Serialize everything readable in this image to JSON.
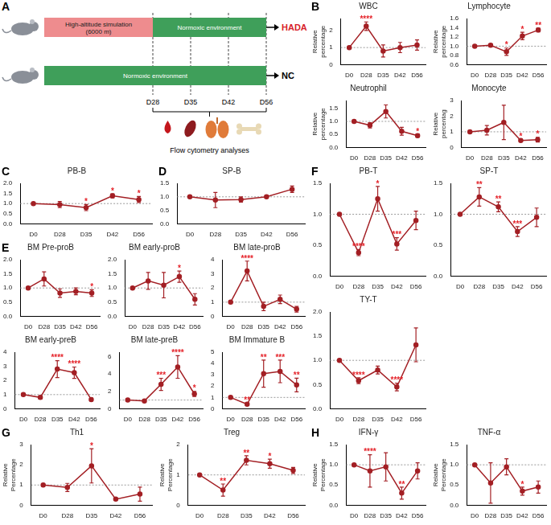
{
  "diagram": {
    "panel": "A",
    "rows": [
      {
        "label": "HADA",
        "color": "#d81e2a",
        "segments": [
          {
            "text": "High-altitude simulation (6000 m)",
            "color": "#ee8c8e"
          },
          {
            "text": "Normoxic environment",
            "color": "#3f9f5a"
          }
        ]
      },
      {
        "label": "NC",
        "color": "#000000",
        "segments": [
          {
            "text": "Normoxic environment",
            "color": "#3f9f5a"
          }
        ]
      }
    ],
    "timepoints": [
      "D28",
      "D35",
      "D42",
      "D56"
    ],
    "caption": "Flow cytometry analyses"
  },
  "chart_data": [
    {
      "type": "line",
      "panel": "B",
      "title": "WBC",
      "y_label": "Relative percentage",
      "categories": [
        "D0",
        "D28",
        "D35",
        "D42",
        "D56"
      ],
      "values": [
        1.0,
        2.25,
        0.8,
        1.0,
        1.15
      ],
      "errors": [
        0,
        0.25,
        0.35,
        0.3,
        0.3
      ],
      "annotations": [
        null,
        "****",
        null,
        null,
        null
      ],
      "reference_line": 1,
      "ylim": [
        0,
        2.7
      ],
      "yticks": [
        0,
        1,
        2
      ],
      "grid": false,
      "color": "#a31f24",
      "marker": "circle"
    },
    {
      "type": "line",
      "title": "Lymphocyte",
      "y_label": "Relative percentage",
      "categories": [
        "D0",
        "D28",
        "D35",
        "D42",
        "D56"
      ],
      "values": [
        1.0,
        1.02,
        0.88,
        1.22,
        1.35
      ],
      "errors": [
        0,
        0.03,
        0.08,
        0.08,
        0.04
      ],
      "annotations": [
        null,
        null,
        "*",
        "*",
        "**"
      ],
      "reference_line": 1,
      "ylim": [
        0.6,
        1.6
      ],
      "yticks": [
        0.6,
        0.8,
        {
          "value": 1,
          "label": "1.0"
        },
        1.2,
        1.4,
        1.6
      ],
      "grid": false,
      "color": "#a31f24",
      "marker": "circle"
    },
    {
      "type": "line",
      "title": "Neutrophil",
      "y_label": "Relative percentage",
      "categories": [
        "D0",
        "D28",
        "D35",
        "D42",
        "D56"
      ],
      "values": [
        1.0,
        0.85,
        1.38,
        0.62,
        0.45
      ],
      "errors": [
        0,
        0.1,
        0.25,
        0.15,
        0.06
      ],
      "annotations": [
        null,
        null,
        null,
        null,
        "*"
      ],
      "reference_line": 1,
      "ylim": [
        0,
        1.8
      ],
      "yticks": [
        {
          "value": 0,
          "label": "0.0"
        },
        0.5,
        {
          "value": 1,
          "label": "1.0"
        },
        1.5
      ],
      "grid": false,
      "color": "#a31f24",
      "marker": "circle"
    },
    {
      "type": "line",
      "title": "Monocyte",
      "y_label": "Relative percentag",
      "categories": [
        "D0",
        "D28",
        "D35",
        "D42",
        "D56"
      ],
      "values": [
        1.0,
        1.1,
        1.6,
        0.45,
        0.5
      ],
      "errors": [
        0,
        0.3,
        1.1,
        0.08,
        0.15
      ],
      "annotations": [
        null,
        null,
        null,
        "*",
        "*"
      ],
      "reference_line": 1,
      "ylim": [
        0,
        3
      ],
      "yticks": [
        0,
        1,
        2,
        3
      ],
      "grid": false,
      "color": "#a31f24",
      "marker": "circle"
    },
    {
      "type": "line",
      "panel": "C",
      "title": "PB-B",
      "categories": [
        "D0",
        "D28",
        "D35",
        "D42",
        "D56"
      ],
      "values": [
        1.0,
        0.95,
        0.8,
        1.38,
        1.2
      ],
      "errors": [
        0,
        0.15,
        0.15,
        0.1,
        0.15
      ],
      "annotations": [
        null,
        null,
        "*",
        "*",
        "*"
      ],
      "reference_line": 1,
      "ylim": [
        0,
        2
      ],
      "yticks": [
        {
          "value": 0,
          "label": "0.0"
        },
        0.5,
        {
          "value": 1,
          "label": "1.0"
        },
        1.5,
        {
          "value": 2,
          "label": "2.0"
        }
      ],
      "grid": false,
      "color": "#a31f24",
      "marker": "circle"
    },
    {
      "type": "line",
      "panel": "D",
      "title": "SP-B",
      "categories": [
        "D0",
        "D28",
        "D35",
        "D42",
        "D56"
      ],
      "values": [
        1.0,
        0.88,
        0.9,
        1.0,
        1.28
      ],
      "errors": [
        0,
        0.28,
        0.1,
        0.05,
        0.12
      ],
      "annotations": [
        null,
        null,
        null,
        null,
        null
      ],
      "reference_line": 1,
      "ylim": [
        0,
        1.5
      ],
      "yticks": [
        {
          "value": 0,
          "label": "0.0"
        },
        0.5,
        {
          "value": 1,
          "label": "1.0"
        },
        1.5
      ],
      "grid": false,
      "color": "#a31f24",
      "marker": "circle"
    },
    {
      "type": "line",
      "panel": "E",
      "title": "BM Pre-proB",
      "categories": [
        "D0",
        "D28",
        "D35",
        "D42",
        "D56"
      ],
      "values": [
        1.0,
        1.32,
        0.82,
        0.88,
        0.82
      ],
      "errors": [
        0,
        0.25,
        0.15,
        0.12,
        0.12
      ],
      "annotations": [
        null,
        null,
        null,
        null,
        "*"
      ],
      "reference_line": 1,
      "ylim": [
        0,
        2
      ],
      "yticks": [
        {
          "value": 0,
          "label": "0.0"
        },
        0.5,
        {
          "value": 1,
          "label": "1.0"
        },
        1.5,
        {
          "value": 2,
          "label": "2.0"
        }
      ],
      "grid": false,
      "color": "#a31f24",
      "marker": "circle"
    },
    {
      "type": "line",
      "title": "BM early-proB",
      "categories": [
        "D0",
        "D28",
        "D35",
        "D42",
        "D56"
      ],
      "values": [
        1.0,
        1.25,
        1.1,
        1.4,
        0.6
      ],
      "errors": [
        0,
        0.3,
        0.45,
        0.2,
        0.2
      ],
      "annotations": [
        null,
        null,
        null,
        "*",
        null
      ],
      "reference_line": 1,
      "ylim": [
        0,
        2
      ],
      "yticks": [
        {
          "value": 0,
          "label": "0.0"
        },
        0.5,
        {
          "value": 1,
          "label": "1.0"
        },
        1.5,
        {
          "value": 2,
          "label": "2.0"
        }
      ],
      "grid": false,
      "color": "#a31f24",
      "marker": "circle"
    },
    {
      "type": "line",
      "title": "BM late-proB",
      "categories": [
        "D0",
        "D28",
        "D35",
        "D42",
        "D56"
      ],
      "values": [
        1.0,
        3.2,
        0.7,
        1.2,
        0.5
      ],
      "errors": [
        0,
        0.7,
        0.3,
        0.3,
        0.2
      ],
      "annotations": [
        null,
        "****",
        null,
        null,
        null
      ],
      "reference_line": 1,
      "ylim": [
        0,
        4
      ],
      "yticks": [
        0,
        1,
        2,
        3,
        4
      ],
      "grid": false,
      "color": "#a31f24",
      "marker": "circle"
    },
    {
      "type": "line",
      "title": "BM early-preB",
      "categories": [
        "D0",
        "D28",
        "D35",
        "D42",
        "D56"
      ],
      "values": [
        1.0,
        0.8,
        2.8,
        2.55,
        0.65
      ],
      "errors": [
        0,
        0.1,
        0.6,
        0.4,
        0.1
      ],
      "annotations": [
        null,
        null,
        "****",
        "****",
        null
      ],
      "reference_line": 1,
      "ylim": [
        0,
        4
      ],
      "yticks": [
        0,
        1,
        2,
        3,
        4
      ],
      "grid": false,
      "color": "#a31f24",
      "marker": "circle"
    },
    {
      "type": "line",
      "title": "BM late-preB",
      "categories": [
        "D0",
        "D28",
        "D35",
        "D42",
        "D56"
      ],
      "values": [
        1.0,
        0.9,
        2.8,
        4.8,
        1.7
      ],
      "errors": [
        0,
        0.05,
        0.7,
        1.3,
        0.3
      ],
      "annotations": [
        null,
        null,
        "***",
        "****",
        "*"
      ],
      "reference_line": 1,
      "ylim": [
        0,
        6.5
      ],
      "yticks": [
        0,
        2,
        4,
        6
      ],
      "grid": false,
      "color": "#a31f24",
      "marker": "circle"
    },
    {
      "type": "line",
      "title": "BM Immature B",
      "categories": [
        "D0",
        "D28",
        "D35",
        "D42",
        "D56"
      ],
      "values": [
        1.0,
        0.4,
        3.1,
        3.3,
        2.1
      ],
      "errors": [
        0,
        0.1,
        1.2,
        1.0,
        0.6
      ],
      "annotations": [
        null,
        "**",
        "**",
        "***",
        "**"
      ],
      "reference_line": 1,
      "ylim": [
        0,
        5
      ],
      "yticks": [
        0,
        1,
        2,
        3,
        4,
        5
      ],
      "grid": false,
      "color": "#a31f24",
      "marker": "circle"
    },
    {
      "type": "line",
      "panel": "F",
      "title": "PB-T",
      "categories": [
        "D0",
        "D28",
        "D35",
        "D42",
        "D56"
      ],
      "values": [
        1.0,
        0.38,
        1.25,
        0.52,
        0.9
      ],
      "errors": [
        0,
        0.05,
        0.2,
        0.1,
        0.15
      ],
      "annotations": [
        null,
        "****",
        "*",
        "***",
        null
      ],
      "reference_line": 1,
      "ylim": [
        0,
        1.5
      ],
      "yticks": [
        {
          "value": 0,
          "label": "0.0"
        },
        0.5,
        {
          "value": 1,
          "label": "1.0"
        },
        1.5
      ],
      "grid": false,
      "color": "#a31f24",
      "marker": "circle"
    },
    {
      "type": "line",
      "title": "SP-T",
      "categories": [
        "D0",
        "D28",
        "D35",
        "D42",
        "D56"
      ],
      "values": [
        1.0,
        1.28,
        1.12,
        0.72,
        0.95
      ],
      "errors": [
        0,
        0.15,
        0.08,
        0.08,
        0.15
      ],
      "annotations": [
        null,
        "**",
        "**",
        "***",
        null
      ],
      "reference_line": 1,
      "ylim": [
        0,
        1.5
      ],
      "yticks": [
        {
          "value": 0,
          "label": "0.0"
        },
        0.5,
        {
          "value": 1,
          "label": "1.0"
        },
        1.5
      ],
      "grid": false,
      "color": "#a31f24",
      "marker": "circle"
    },
    {
      "type": "line",
      "title": "TY-T",
      "categories": [
        "D0",
        "D28",
        "D35",
        "D42",
        "D56"
      ],
      "values": [
        1.0,
        0.58,
        0.8,
        0.45,
        1.32
      ],
      "errors": [
        0,
        0.06,
        0.08,
        0.08,
        0.35
      ],
      "annotations": [
        null,
        "****",
        null,
        "****",
        null
      ],
      "reference_line": 1,
      "ylim": [
        0,
        2
      ],
      "yticks": [
        {
          "value": 0,
          "label": "0.0"
        },
        0.5,
        {
          "value": 1,
          "label": "1.0"
        },
        1.5,
        {
          "value": 2,
          "label": "2.0"
        }
      ],
      "grid": false,
      "color": "#a31f24",
      "marker": "circle"
    },
    {
      "type": "line",
      "panel": "G",
      "title": "Th1",
      "y_label": "Relative Percentage",
      "categories": [
        "D0",
        "D28",
        "D35",
        "D42",
        "D56"
      ],
      "values": [
        1.0,
        0.88,
        1.95,
        0.3,
        0.55
      ],
      "errors": [
        0,
        0.2,
        0.85,
        0.05,
        0.35
      ],
      "annotations": [
        null,
        null,
        "*",
        null,
        null
      ],
      "reference_line": 1,
      "ylim": [
        0,
        3
      ],
      "yticks": [
        0,
        1,
        2,
        3
      ],
      "grid": false,
      "color": "#a31f24",
      "marker": "circle"
    },
    {
      "type": "line",
      "title": "Treg",
      "y_label": "Relative Percentage",
      "categories": [
        "D0",
        "D28",
        "D35",
        "D42",
        "D56"
      ],
      "values": [
        1.0,
        0.5,
        1.48,
        1.37,
        1.15
      ],
      "errors": [
        0,
        0.2,
        0.15,
        0.15,
        0.1
      ],
      "annotations": [
        null,
        "**",
        "**",
        "*",
        null
      ],
      "reference_line": 1,
      "ylim": [
        0,
        2
      ],
      "yticks": [
        0,
        1,
        2
      ],
      "grid": false,
      "color": "#a31f24",
      "marker": "circle"
    },
    {
      "type": "line",
      "panel": "H",
      "title": "IFN-γ",
      "y_label": "Relative Percentage",
      "categories": [
        "D0",
        "D28",
        "D35",
        "D42",
        "D56"
      ],
      "values": [
        1.0,
        0.85,
        0.95,
        0.3,
        0.85
      ],
      "errors": [
        0,
        0.4,
        0.35,
        0.15,
        0.2
      ],
      "annotations": [
        null,
        "****",
        null,
        "**",
        null
      ],
      "reference_line": 1,
      "ylim": [
        0,
        1.5
      ],
      "yticks": [
        {
          "value": 0,
          "label": "0.0"
        },
        0.5,
        {
          "value": 1,
          "label": "1.0"
        },
        1.5
      ],
      "grid": false,
      "color": "#a31f24",
      "marker": "circle"
    },
    {
      "type": "line",
      "title": "TNF-α",
      "y_label": "Relative Percentage",
      "categories": [
        "D0",
        "D28",
        "D35",
        "D42",
        "D56"
      ],
      "values": [
        1.0,
        0.55,
        0.95,
        0.35,
        0.45
      ],
      "errors": [
        0,
        0.5,
        0.2,
        0.1,
        0.15
      ],
      "annotations": [
        null,
        null,
        null,
        "*",
        null
      ],
      "reference_line": 1,
      "ylim": [
        0,
        1.5
      ],
      "yticks": [
        {
          "value": 0,
          "label": "0.0"
        },
        0.5,
        {
          "value": 1,
          "label": "1.0"
        },
        1.5
      ],
      "grid": false,
      "color": "#a31f24",
      "marker": "circle"
    }
  ]
}
